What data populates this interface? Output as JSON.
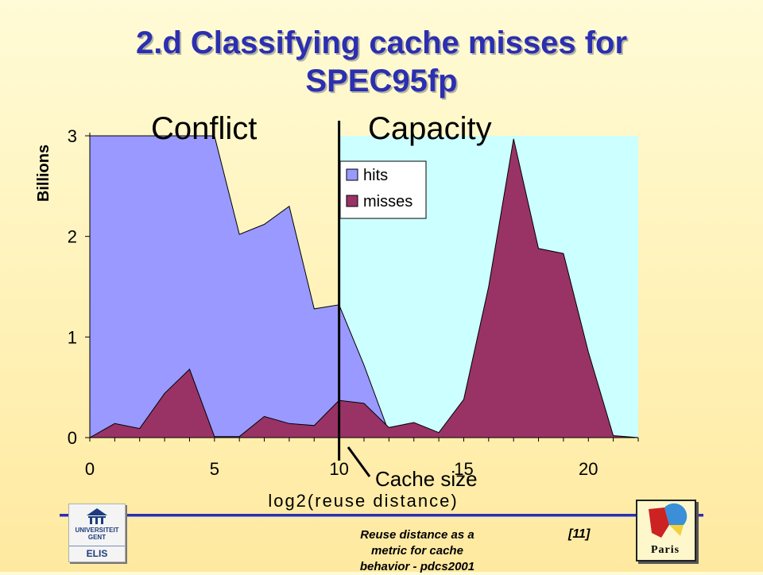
{
  "slide": {
    "title_line1": "2.d Classifying cache misses for",
    "title_line2": "SPEC95fp",
    "conflict_label": "Conflict",
    "capacity_label": "Capacity",
    "cache_size_label": "Cache size",
    "footer_line1": "Reuse distance as a",
    "footer_line2": "metric for cache",
    "footer_line3": "behavior - pdcs2001",
    "page_number": "[11]",
    "logo_left_line1": "UNIVERSITEIT",
    "logo_left_line2": "GENT",
    "logo_left_line3": "ELIS",
    "logo_right_text": "Paris"
  },
  "colors": {
    "title": "#2b2fb0",
    "hits": "#9999ff",
    "misses": "#993366",
    "capacity_background": "#ccffff"
  },
  "chart_data": {
    "type": "area",
    "title": "",
    "xlabel": "log2(reuse distance)",
    "ylabel": "Billions",
    "xlim": [
      0,
      22
    ],
    "ylim": [
      0,
      3
    ],
    "x_ticks": [
      0,
      5,
      10,
      15,
      20
    ],
    "y_ticks": [
      0,
      1,
      2,
      3
    ],
    "legend_position": "top-center",
    "cache_size_x": 10,
    "x": [
      0,
      1,
      2,
      3,
      4,
      5,
      6,
      7,
      8,
      9,
      10,
      11,
      12,
      13,
      14,
      15,
      16,
      17,
      18,
      19,
      20,
      21,
      22
    ],
    "series": [
      {
        "name": "hits",
        "values": [
          3.0,
          3.0,
          3.0,
          3.0,
          3.0,
          3.0,
          2.02,
          2.12,
          2.3,
          1.28,
          1.32,
          0.72,
          0.05,
          0.0,
          0.0,
          0.0,
          0.0,
          0.0,
          0.0,
          0.0,
          0.0,
          0.0,
          0.0
        ]
      },
      {
        "name": "misses",
        "values": [
          0.0,
          0.14,
          0.09,
          0.44,
          0.68,
          0.01,
          0.01,
          0.21,
          0.14,
          0.12,
          0.37,
          0.34,
          0.1,
          0.15,
          0.05,
          0.38,
          1.5,
          2.97,
          1.88,
          1.83,
          0.85,
          0.02,
          0.0
        ]
      }
    ]
  }
}
